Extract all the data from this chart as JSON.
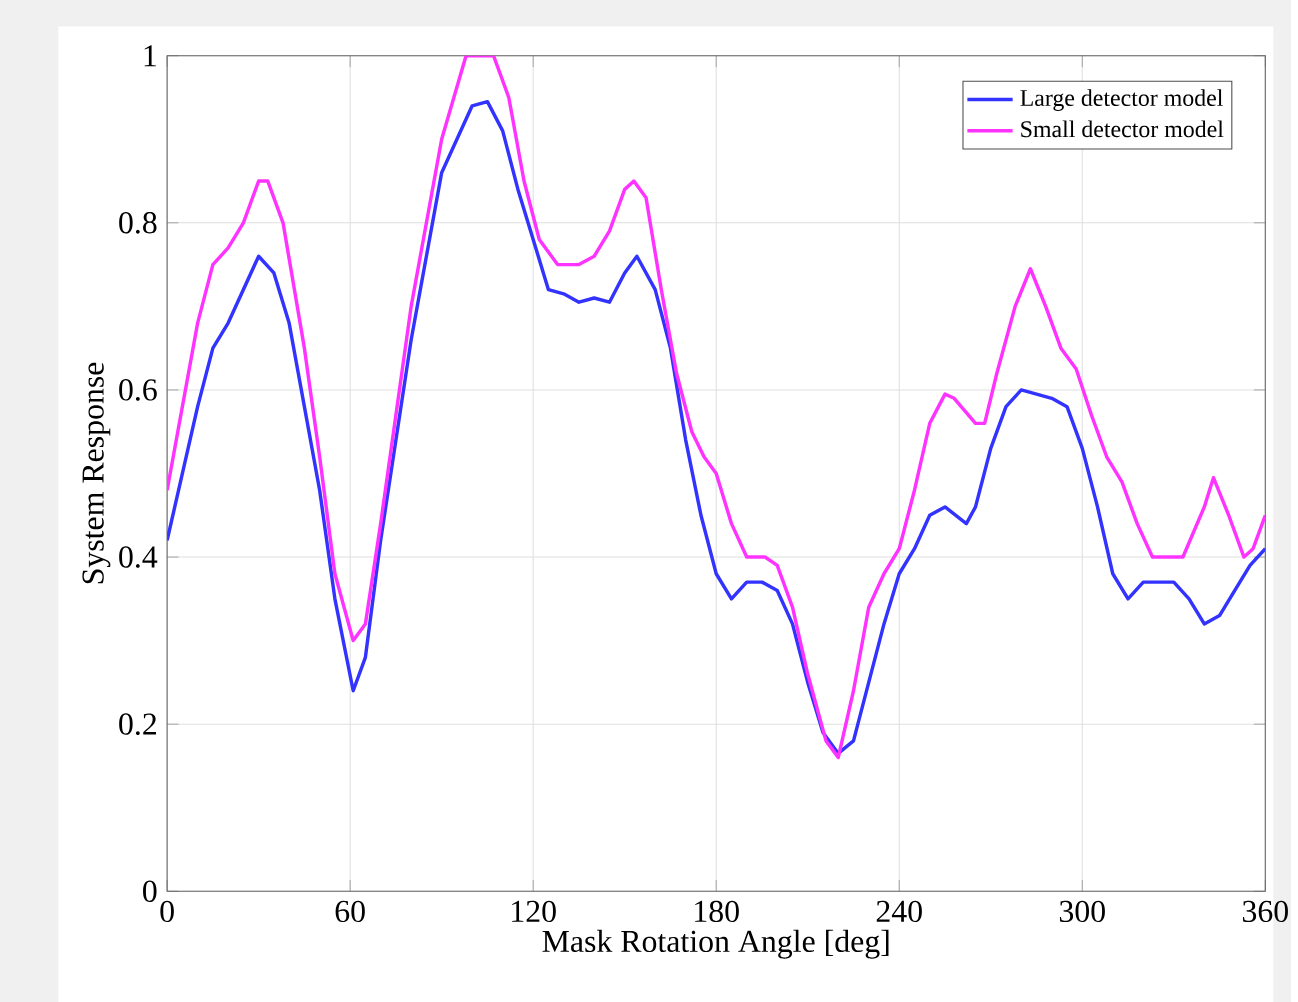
{
  "chart_data": {
    "type": "line",
    "xlabel": "Mask Rotation Angle [deg]",
    "ylabel": "System Response",
    "xlim": [
      0,
      360
    ],
    "ylim": [
      0,
      1
    ],
    "xticks": [
      0,
      60,
      120,
      180,
      240,
      300,
      360
    ],
    "yticks": [
      0,
      0.2,
      0.4,
      0.6,
      0.8,
      1
    ],
    "grid": true,
    "legend": "top right",
    "marker": "none",
    "line_style": "solid",
    "series": [
      {
        "name": "Large detector model",
        "color": "#3333ff",
        "x": [
          0,
          10,
          15,
          20,
          30,
          35,
          40,
          50,
          55,
          61,
          65,
          70,
          80,
          90,
          100,
          105,
          110,
          115,
          120,
          125,
          130,
          135,
          140,
          145,
          150,
          154,
          160,
          165,
          170,
          175,
          180,
          185,
          190,
          195,
          200,
          205,
          210,
          215,
          220,
          225,
          230,
          235,
          240,
          245,
          250,
          255,
          262,
          265,
          270,
          275,
          280,
          290,
          295,
          300,
          305,
          310,
          315,
          320,
          325,
          330,
          335,
          340,
          345,
          350,
          355,
          360
        ],
        "values": [
          0.42,
          0.58,
          0.65,
          0.68,
          0.76,
          0.74,
          0.68,
          0.48,
          0.35,
          0.24,
          0.28,
          0.42,
          0.66,
          0.86,
          0.94,
          0.945,
          0.91,
          0.84,
          0.78,
          0.72,
          0.715,
          0.705,
          0.71,
          0.705,
          0.74,
          0.76,
          0.72,
          0.65,
          0.54,
          0.45,
          0.38,
          0.35,
          0.37,
          0.37,
          0.36,
          0.32,
          0.25,
          0.19,
          0.165,
          0.18,
          0.25,
          0.32,
          0.38,
          0.41,
          0.45,
          0.46,
          0.44,
          0.46,
          0.53,
          0.58,
          0.6,
          0.59,
          0.58,
          0.53,
          0.46,
          0.38,
          0.35,
          0.37,
          0.37,
          0.37,
          0.35,
          0.32,
          0.33,
          0.36,
          0.39,
          0.41
        ]
      },
      {
        "name": "Small detector model",
        "color": "#ff33ff",
        "x": [
          0,
          10,
          15,
          20,
          25,
          30,
          33,
          38,
          45,
          50,
          55,
          61,
          65,
          70,
          80,
          90,
          98,
          107,
          112,
          117,
          122,
          128,
          135,
          140,
          145,
          150,
          153,
          157,
          162,
          167,
          172,
          176,
          180,
          185,
          190,
          196,
          200,
          205,
          210,
          216,
          220,
          225,
          230,
          235,
          240,
          245,
          250,
          255,
          258,
          265,
          268,
          272,
          278,
          283,
          288,
          293,
          298,
          303,
          308,
          313,
          318,
          323,
          328,
          333,
          340,
          343,
          348,
          353,
          356,
          360
        ],
        "values": [
          0.48,
          0.68,
          0.75,
          0.77,
          0.8,
          0.85,
          0.85,
          0.8,
          0.65,
          0.52,
          0.38,
          0.3,
          0.32,
          0.44,
          0.7,
          0.9,
          1.0,
          1.0,
          0.95,
          0.85,
          0.78,
          0.75,
          0.75,
          0.76,
          0.79,
          0.84,
          0.85,
          0.83,
          0.72,
          0.62,
          0.55,
          0.52,
          0.5,
          0.44,
          0.4,
          0.4,
          0.39,
          0.34,
          0.26,
          0.18,
          0.16,
          0.24,
          0.34,
          0.38,
          0.41,
          0.48,
          0.56,
          0.595,
          0.59,
          0.56,
          0.56,
          0.62,
          0.7,
          0.745,
          0.7,
          0.65,
          0.625,
          0.57,
          0.52,
          0.49,
          0.44,
          0.4,
          0.4,
          0.4,
          0.46,
          0.495,
          0.45,
          0.4,
          0.41,
          0.45
        ]
      }
    ]
  }
}
